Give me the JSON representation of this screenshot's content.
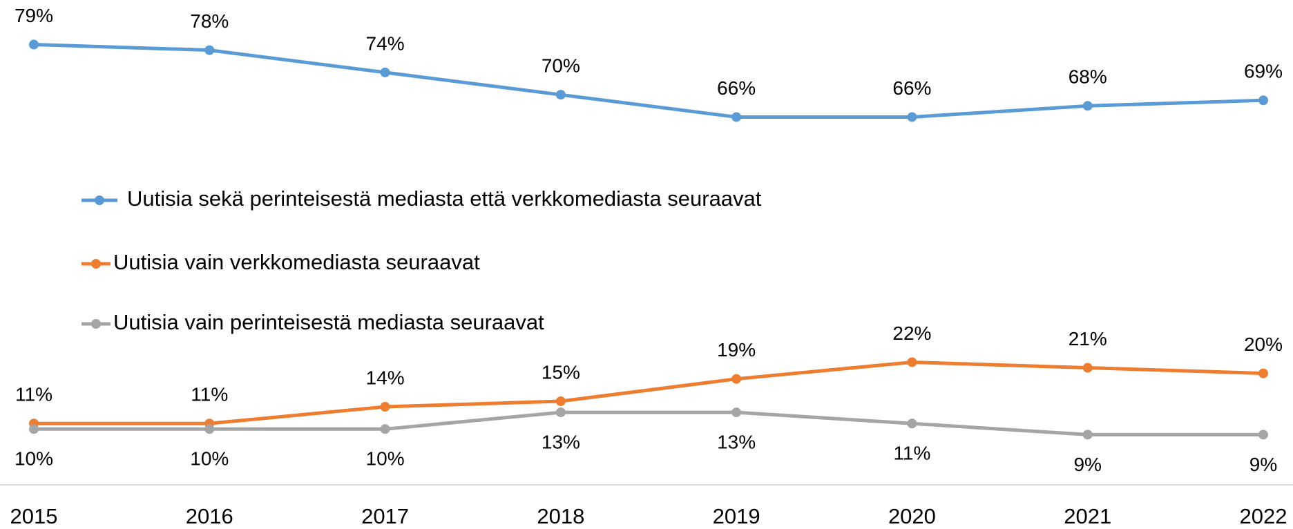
{
  "chart_data": {
    "type": "line",
    "categories": [
      "2015",
      "2016",
      "2017",
      "2018",
      "2019",
      "2020",
      "2021",
      "2022"
    ],
    "ylim": [
      0,
      87
    ],
    "series": [
      {
        "name": "Uutisia sekä perinteisestä mediasta että verkkomediasta seuraavat",
        "color": "#5b9bd5",
        "values": [
          79,
          78,
          74,
          70,
          66,
          66,
          68,
          69
        ],
        "value_labels": [
          "79%",
          "78%",
          "74%",
          "70%",
          "66%",
          "66%",
          "68%",
          "69%"
        ]
      },
      {
        "name": "Uutisia vain verkkomediasta seuraavat",
        "color": "#ed7d31",
        "values": [
          11,
          11,
          14,
          15,
          19,
          22,
          21,
          20
        ],
        "value_labels": [
          "11%",
          "11%",
          "14%",
          "15%",
          "19%",
          "22%",
          "21%",
          "20%"
        ]
      },
      {
        "name": "Uutisia vain perinteisestä mediasta seuraavat",
        "color": "#a5a5a5",
        "values": [
          10,
          10,
          10,
          13,
          13,
          11,
          9,
          9
        ],
        "value_labels": [
          "10%",
          "10%",
          "10%",
          "13%",
          "13%",
          "11%",
          "9%",
          "9%"
        ]
      }
    ]
  }
}
